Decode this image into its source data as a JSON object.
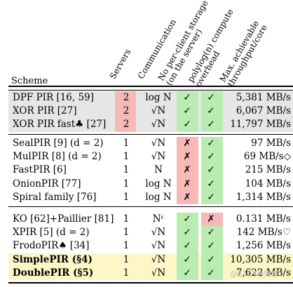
{
  "headers": {
    "scheme": "Scheme",
    "servers": "Servers",
    "communication": "Communication",
    "no_storage_l1": "No per-client storage",
    "no_storage_l2": "(on the server)",
    "polylog_l1": "polylog(n) compute",
    "polylog_l2": "overhead",
    "throughput_l1": "Max. achievable",
    "throughput_l2": "throughput/core"
  },
  "groups": [
    {
      "highlight": "grey",
      "rows": [
        {
          "scheme": "DPF PIR [16, 59]",
          "servers": "2",
          "comm": "log N",
          "storage": "✓",
          "polylog": "✓",
          "tput": "5,381 MB/s",
          "servers_red": true,
          "storage_ok": true,
          "poly_ok": true
        },
        {
          "scheme": "XOR PIR [27]",
          "servers": "2",
          "comm": "√N",
          "storage": "✓",
          "polylog": "✓",
          "tput": "6,067 MB/s",
          "servers_red": true,
          "storage_ok": true,
          "poly_ok": true
        },
        {
          "scheme": "XOR PIR fast♣ [27]",
          "servers": "2",
          "comm": "√N",
          "storage": "✓",
          "polylog": "✓",
          "tput": "11,797 MB/s",
          "servers_red": true,
          "storage_ok": true,
          "poly_ok": true
        }
      ]
    },
    {
      "highlight": "none",
      "rows": [
        {
          "scheme": "SealPIR [9] (d = 2)",
          "servers": "1",
          "comm": "√N",
          "storage": "✗",
          "polylog": "✓",
          "tput": "97 MB/s",
          "storage_ok": false,
          "poly_ok": true
        },
        {
          "scheme": "MulPIR [8] (d = 2)",
          "servers": "1",
          "comm": "√N",
          "storage": "✗",
          "polylog": "✓",
          "tput": "69 MB/s◇",
          "storage_ok": false,
          "poly_ok": true
        },
        {
          "scheme": "FastPIR [6]",
          "servers": "1",
          "comm": "N",
          "storage": "✗",
          "polylog": "✓",
          "tput": "215 MB/s",
          "storage_ok": false,
          "poly_ok": true
        },
        {
          "scheme": "OnionPIR [77]",
          "servers": "1",
          "comm": "log N",
          "storage": "✗",
          "polylog": "✓",
          "tput": "104 MB/s",
          "storage_ok": false,
          "poly_ok": true
        },
        {
          "scheme": "Spiral family [76]",
          "servers": "1",
          "comm": "log N",
          "storage": "✗",
          "polylog": "✓",
          "tput": "1,314 MB/s",
          "storage_ok": false,
          "poly_ok": true
        }
      ]
    },
    {
      "highlight": "mixed",
      "rows": [
        {
          "scheme": "KO [62]+Paillier [81]",
          "servers": "1",
          "comm": "Nᵋ",
          "storage": "✓",
          "polylog": "✗",
          "tput": "0.131 MB/s",
          "storage_ok": true,
          "poly_ok": false
        },
        {
          "scheme": "XPIR [5] (d = 2)",
          "servers": "1",
          "comm": "√N",
          "storage": "✓",
          "polylog": "✓",
          "tput": "142 MB/s♡",
          "storage_ok": true,
          "poly_ok": true
        },
        {
          "scheme": "FrodoPIR♠ [34]",
          "servers": "1",
          "comm": "√N",
          "storage": "✓",
          "polylog": "✓",
          "tput": "1,256 MB/s",
          "storage_ok": true,
          "poly_ok": true
        },
        {
          "scheme": "SimplePIR (§4)",
          "servers": "1",
          "comm": "√N",
          "storage": "✓",
          "polylog": "✓",
          "tput": "10,305 MB/s",
          "storage_ok": true,
          "poly_ok": true,
          "bold": true
        },
        {
          "scheme": "DoublePIR (§5)",
          "servers": "1",
          "comm": "√N",
          "storage": "✓",
          "polylog": "✓",
          "tput": "7,622 MB/s",
          "storage_ok": true,
          "poly_ok": true,
          "bold": true
        }
      ]
    }
  ],
  "watermark": "@51CTO博客",
  "colors": {
    "grey": "#e6e6e6",
    "yellow": "#fdf6c6",
    "red": "#f7b9b8",
    "green": "#b9ecb0"
  }
}
